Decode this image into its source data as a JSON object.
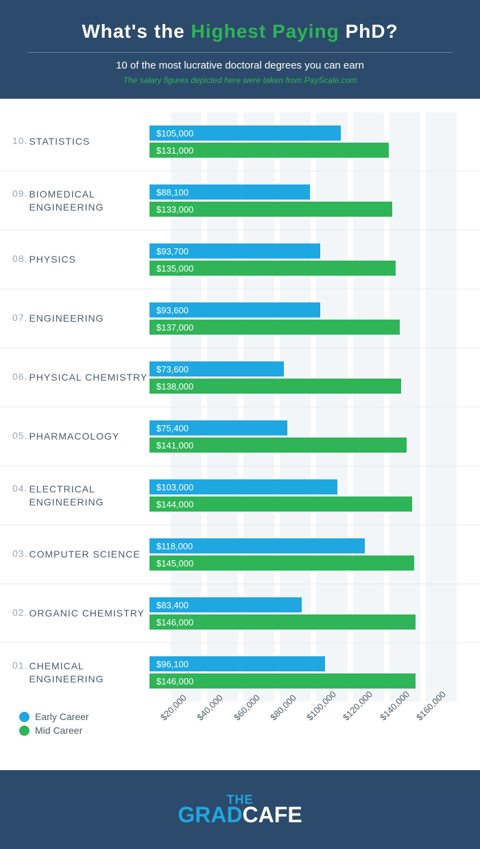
{
  "header": {
    "title_pre": "What's the ",
    "title_highlight": "Highest Paying",
    "title_post": " PhD?",
    "subtitle": "10 of the most lucrative doctoral degrees you can earn",
    "source": "The salary figures depicted here were taken from PayScale.com"
  },
  "chart": {
    "type": "grouped_horizontal_bar",
    "axis_min": 20000,
    "axis_max": 160000,
    "axis_step": 20000,
    "bar_scale_max": 168000,
    "early_color": "#1ea7e0",
    "mid_color": "#2fb457",
    "grid_band_color": "#f3f6f8",
    "grid_band_width_value": 8500,
    "rows": [
      {
        "rank": "10.",
        "name": "STATISTICS",
        "early": 105000,
        "early_label": "$105,000",
        "mid": 131000,
        "mid_label": "$131,000"
      },
      {
        "rank": "09.",
        "name": "BIOMEDICAL ENGINEERING",
        "early": 88100,
        "early_label": "$88,100",
        "mid": 133000,
        "mid_label": "$133,000"
      },
      {
        "rank": "08.",
        "name": "PHYSICS",
        "early": 93700,
        "early_label": "$93,700",
        "mid": 135000,
        "mid_label": "$135,000"
      },
      {
        "rank": "07.",
        "name": "ENGINEERING",
        "early": 93600,
        "early_label": "$93,600",
        "mid": 137000,
        "mid_label": "$137,000"
      },
      {
        "rank": "06.",
        "name": "PHYSICAL CHEMISTRY",
        "early": 73600,
        "early_label": "$73,600",
        "mid": 138000,
        "mid_label": "$138,000"
      },
      {
        "rank": "05.",
        "name": "PHARMACOLOGY",
        "early": 75400,
        "early_label": "$75,400",
        "mid": 141000,
        "mid_label": "$141,000"
      },
      {
        "rank": "04.",
        "name": "ELECTRICAL ENGINEERING",
        "early": 103000,
        "early_label": "$103,000",
        "mid": 144000,
        "mid_label": "$144,000"
      },
      {
        "rank": "03.",
        "name": "COMPUTER SCIENCE",
        "early": 118000,
        "early_label": "$118,000",
        "mid": 145000,
        "mid_label": "$145,000"
      },
      {
        "rank": "02.",
        "name": "ORGANIC CHEMISTRY",
        "early": 83400,
        "early_label": "$83,400",
        "mid": 146000,
        "mid_label": "$146,000"
      },
      {
        "rank": "01.",
        "name": "CHEMICAL ENGINEERING",
        "early": 96100,
        "early_label": "$96,100",
        "mid": 146000,
        "mid_label": "$146,000"
      }
    ],
    "legend": {
      "early": "Early Career",
      "mid": "Mid Career"
    },
    "ticks": [
      "$20,000",
      "$40,000",
      "$60,000",
      "$80,000",
      "$100,000",
      "$120,000",
      "$140,000",
      "$160,000"
    ]
  },
  "footer": {
    "logo_top": "THE",
    "logo_bottom_a": "GRAD",
    "logo_bottom_b": "CAFE"
  }
}
